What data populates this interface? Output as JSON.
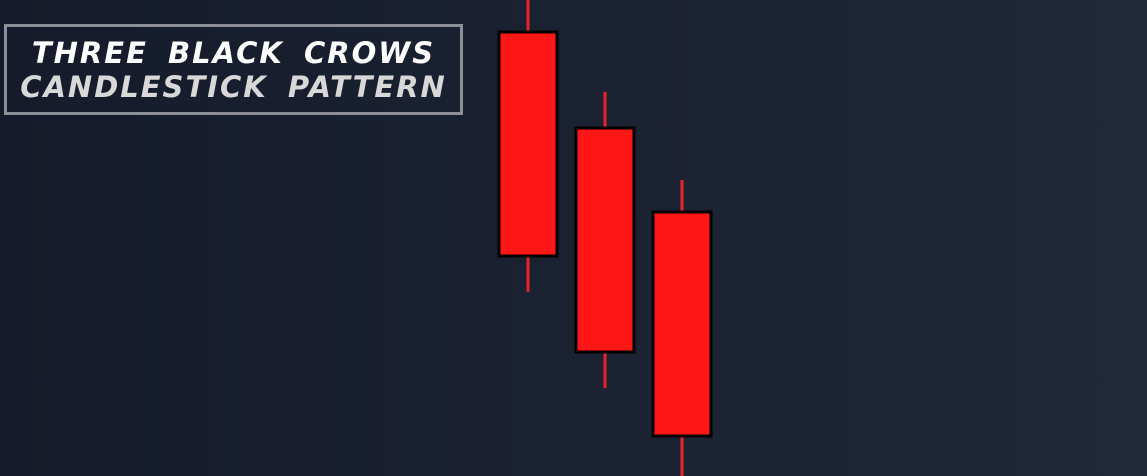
{
  "title": {
    "line1": "THREE  BLACK  CROWS",
    "line2": "CANDLESTICK  PATTERN"
  },
  "colors": {
    "candle_body": "#ff1717",
    "candle_border": "#000000",
    "wick": "#e8232b",
    "background": "#1a2030",
    "title_border": "#8c8f95"
  },
  "chart_data": {
    "type": "candlestick",
    "pattern": "three black crows",
    "candles": [
      {
        "open": 100,
        "high": 109,
        "low": 35,
        "close": 44
      },
      {
        "open": 76,
        "high": 85,
        "low": 11,
        "close": 20
      },
      {
        "open": 55,
        "high": 63,
        "low": -11,
        "close": -1
      }
    ]
  }
}
